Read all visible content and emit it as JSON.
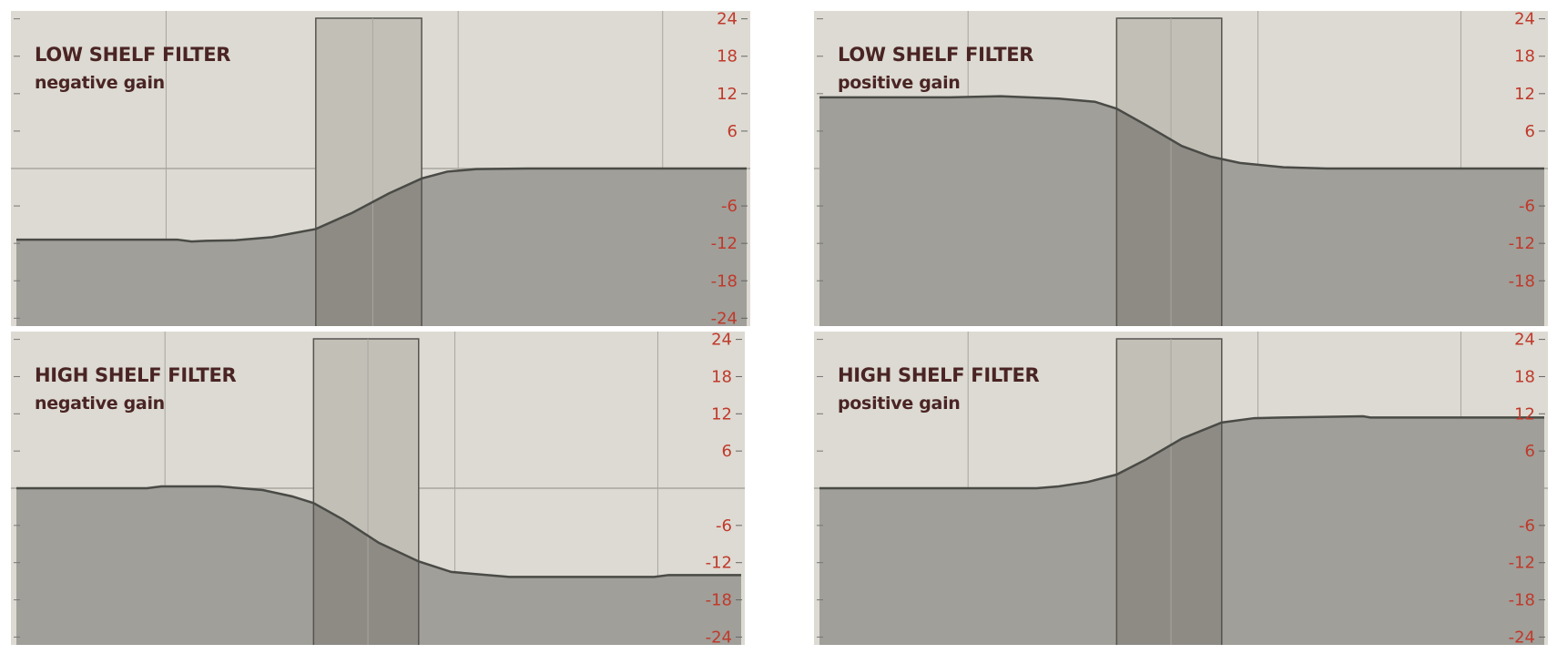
{
  "colors": {
    "background": "#dcdad2",
    "fill": "#a09f99",
    "curve": "#4a4a46",
    "grid": "#a8a69e",
    "band": "#c2c0b6",
    "band_overlap": "#8d8b84",
    "band_border": "#55534f",
    "tick_label": "#c0392b",
    "title": "#4a2424"
  },
  "chart_data": [
    {
      "type": "area",
      "title": "LOW SHELF FILTER",
      "subtitle": "negative gain",
      "yticks": [
        "24",
        "18",
        "12",
        "6",
        "-6",
        "-12",
        "-18",
        "-24"
      ],
      "ylim": [
        -24,
        24
      ],
      "xlim": [
        0,
        1
      ],
      "grid": true,
      "band": {
        "from": 0.41,
        "mid": 0.488,
        "to": 0.555
      },
      "curve": [
        [
          0,
          -11.4
        ],
        [
          0.22,
          -11.4
        ],
        [
          0.24,
          -11.7
        ],
        [
          0.26,
          -11.6
        ],
        [
          0.3,
          -11.5
        ],
        [
          0.35,
          -11.0
        ],
        [
          0.41,
          -9.7
        ],
        [
          0.46,
          -7.1
        ],
        [
          0.51,
          -4.0
        ],
        [
          0.555,
          -1.6
        ],
        [
          0.59,
          -0.5
        ],
        [
          0.63,
          -0.1
        ],
        [
          0.7,
          0
        ],
        [
          1.0,
          0
        ]
      ]
    },
    {
      "type": "area",
      "title": "LOW SHELF FILTER",
      "subtitle": "positive gain",
      "yticks": [
        "24",
        "18",
        "12",
        "6",
        "-6",
        "-12",
        "-18"
      ],
      "ylim": [
        -24,
        24
      ],
      "xlim": [
        0,
        1
      ],
      "grid": true,
      "band": {
        "from": 0.41,
        "mid": 0.485,
        "to": 0.555
      },
      "curve": [
        [
          0,
          11.4
        ],
        [
          0.18,
          11.4
        ],
        [
          0.25,
          11.6
        ],
        [
          0.33,
          11.2
        ],
        [
          0.38,
          10.7
        ],
        [
          0.41,
          9.6
        ],
        [
          0.45,
          7.0
        ],
        [
          0.5,
          3.6
        ],
        [
          0.54,
          1.9
        ],
        [
          0.58,
          0.9
        ],
        [
          0.64,
          0.2
        ],
        [
          0.7,
          0
        ],
        [
          1.0,
          0
        ]
      ]
    },
    {
      "type": "area",
      "title": "HIGH SHELF FILTER",
      "subtitle": "negative gain",
      "yticks": [
        "24",
        "18",
        "12",
        "6",
        "-6",
        "-12",
        "-18",
        "-24"
      ],
      "ylim": [
        -24,
        24
      ],
      "xlim": [
        0,
        1
      ],
      "grid": true,
      "band": {
        "from": 0.41,
        "mid": 0.485,
        "to": 0.555
      },
      "curve": [
        [
          0,
          0
        ],
        [
          0.18,
          0
        ],
        [
          0.2,
          0.3
        ],
        [
          0.28,
          0.3
        ],
        [
          0.34,
          -0.3
        ],
        [
          0.38,
          -1.3
        ],
        [
          0.41,
          -2.4
        ],
        [
          0.45,
          -5.0
        ],
        [
          0.5,
          -8.8
        ],
        [
          0.555,
          -11.8
        ],
        [
          0.6,
          -13.5
        ],
        [
          0.68,
          -14.3
        ],
        [
          0.88,
          -14.3
        ],
        [
          0.9,
          -14.0
        ],
        [
          1.0,
          -14.0
        ]
      ]
    },
    {
      "type": "area",
      "title": "HIGH SHELF FILTER",
      "subtitle": "positive gain",
      "yticks": [
        "24",
        "18",
        "12",
        "6",
        "-6",
        "-12",
        "-18",
        "-24"
      ],
      "ylim": [
        -24,
        24
      ],
      "xlim": [
        0,
        1
      ],
      "grid": true,
      "band": {
        "from": 0.41,
        "mid": 0.485,
        "to": 0.555
      },
      "curve": [
        [
          0,
          0
        ],
        [
          0.3,
          0
        ],
        [
          0.33,
          0.3
        ],
        [
          0.37,
          1.0
        ],
        [
          0.41,
          2.2
        ],
        [
          0.45,
          4.6
        ],
        [
          0.5,
          8.0
        ],
        [
          0.555,
          10.6
        ],
        [
          0.6,
          11.3
        ],
        [
          0.64,
          11.4
        ],
        [
          0.75,
          11.6
        ],
        [
          0.76,
          11.4
        ],
        [
          1.0,
          11.4
        ]
      ]
    }
  ]
}
